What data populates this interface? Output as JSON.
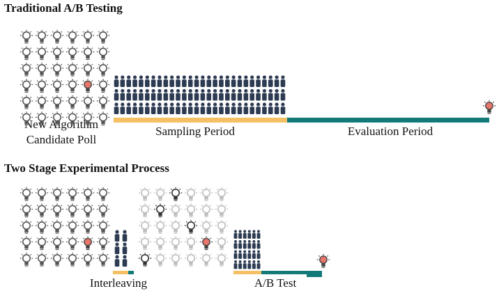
{
  "section1": {
    "title": "Traditional A/B Testing",
    "poll_label_line1": "New Algorithm",
    "poll_label_line2": "Candidate Poll",
    "sampling_label": "Sampling Period",
    "evaluation_label": "Evaluation Period"
  },
  "section2": {
    "title": "Two Stage Experimental Process",
    "interleaving_label": "Interleaving",
    "ab_test_label": "A/B Test"
  },
  "colors": {
    "person": "#2d3b52",
    "bulb_outline": "#555555",
    "bulb_faded": "#bdbdbd",
    "bulb_dark": "#333333",
    "bulb_highlight": "#e8766a",
    "sampling_bar": "#f5c064",
    "evaluation_bar": "#127a78"
  },
  "icons": {
    "bulb": "lightbulb-icon",
    "person": "person-icon"
  }
}
